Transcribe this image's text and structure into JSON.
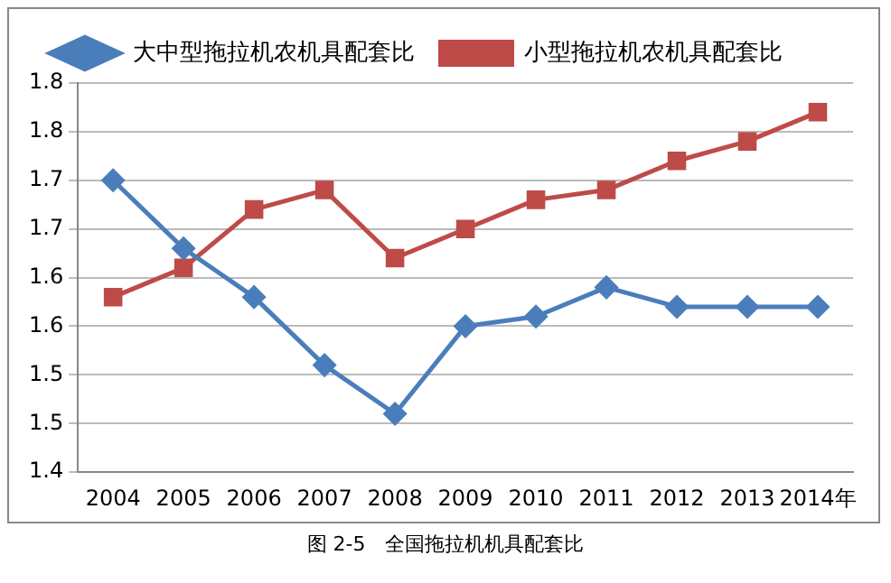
{
  "chart_data": {
    "type": "line",
    "categories": [
      "2004",
      "2005",
      "2006",
      "2007",
      "2008",
      "2009",
      "2010",
      "2011",
      "2012",
      "2013",
      "2014年"
    ],
    "series": [
      {
        "name": "大中型拖拉机农机具配套比",
        "color": "#4a7ebb",
        "marker": "diamond",
        "values": [
          1.7,
          1.63,
          1.58,
          1.51,
          1.46,
          1.55,
          1.56,
          1.59,
          1.57,
          1.57,
          1.57
        ]
      },
      {
        "name": "小型拖拉机农机具配套比",
        "color": "#be4b48",
        "marker": "square",
        "values": [
          1.58,
          1.61,
          1.67,
          1.69,
          1.62,
          1.65,
          1.68,
          1.69,
          1.72,
          1.74,
          1.77
        ]
      }
    ],
    "ylim": [
      1.4,
      1.8
    ],
    "yticks": [
      {
        "value": 1.4,
        "label": "1.4"
      },
      {
        "value": 1.45,
        "label": "1.5"
      },
      {
        "value": 1.5,
        "label": "1.5"
      },
      {
        "value": 1.55,
        "label": "1.6"
      },
      {
        "value": 1.6,
        "label": "1.6"
      },
      {
        "value": 1.65,
        "label": "1.7"
      },
      {
        "value": 1.7,
        "label": "1.7"
      },
      {
        "value": 1.75,
        "label": "1.8"
      },
      {
        "value": 1.8,
        "label": "1.8"
      }
    ],
    "grid": "y",
    "legend": "top",
    "line_style": "solid",
    "annotations": [
      "图 2-5　全国拖拉机机具配套比"
    ]
  }
}
